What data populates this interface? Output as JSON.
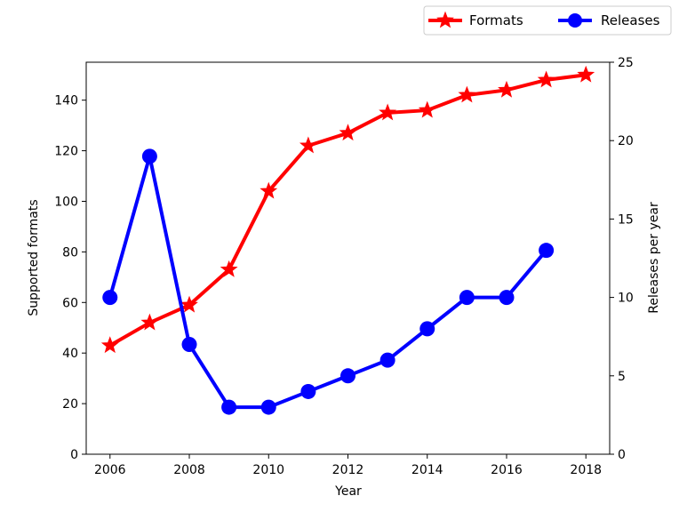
{
  "chart_data": {
    "type": "line",
    "title": "",
    "xlabel": "Year",
    "ylabel_left": "Supported formats",
    "ylabel_right": "Releases per year",
    "xlim": [
      2005.4,
      2018.6
    ],
    "ylim_left": [
      0,
      155
    ],
    "ylim_right": [
      0,
      25
    ],
    "x_ticks": [
      "2006",
      "2008",
      "2010",
      "2012",
      "2014",
      "2016",
      "2018"
    ],
    "y_ticks_left": [
      "0",
      "20",
      "40",
      "60",
      "80",
      "100",
      "120",
      "140"
    ],
    "y_ticks_right": [
      "0",
      "5",
      "10",
      "15",
      "20",
      "25"
    ],
    "grid": false,
    "legend_position": "top-right, above plot",
    "series": [
      {
        "name": "Formats",
        "axis": "left",
        "color": "#ff0000",
        "marker": "star",
        "x": [
          2006,
          2007,
          2008,
          2009,
          2010,
          2011,
          2012,
          2013,
          2014,
          2015,
          2016,
          2017,
          2018
        ],
        "values": [
          43,
          52,
          59,
          73,
          104,
          122,
          127,
          135,
          136,
          142,
          144,
          148,
          150
        ]
      },
      {
        "name": "Releases",
        "axis": "right",
        "color": "#0000ff",
        "marker": "circle",
        "x": [
          2006,
          2007,
          2008,
          2009,
          2010,
          2011,
          2012,
          2013,
          2014,
          2015,
          2016,
          2017
        ],
        "values": [
          10,
          19,
          7,
          3,
          3,
          4,
          5,
          6,
          8,
          10,
          10,
          13
        ]
      }
    ]
  }
}
